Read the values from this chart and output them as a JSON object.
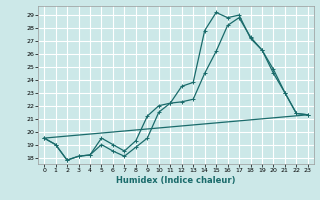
{
  "xlabel": "Humidex (Indice chaleur)",
  "bg_color": "#cce8e8",
  "grid_color": "#ffffff",
  "line_color": "#1a6b6b",
  "xlim": [
    -0.5,
    23.5
  ],
  "ylim": [
    17.5,
    29.7
  ],
  "xticks": [
    0,
    1,
    2,
    3,
    4,
    5,
    6,
    7,
    8,
    9,
    10,
    11,
    12,
    13,
    14,
    15,
    16,
    17,
    18,
    19,
    20,
    21,
    22,
    23
  ],
  "yticks": [
    18,
    19,
    20,
    21,
    22,
    23,
    24,
    25,
    26,
    27,
    28,
    29
  ],
  "line1_x": [
    0,
    1,
    2,
    3,
    4,
    5,
    6,
    7,
    8,
    9,
    10,
    11,
    12,
    13,
    14,
    15,
    16,
    17,
    18,
    19,
    20,
    21,
    22,
    23
  ],
  "line1_y": [
    19.5,
    19.0,
    17.8,
    18.1,
    18.2,
    19.0,
    18.5,
    18.1,
    18.8,
    19.5,
    21.5,
    22.2,
    23.5,
    23.8,
    27.8,
    29.2,
    28.8,
    29.0,
    27.2,
    26.3,
    24.8,
    23.0,
    21.4,
    21.3
  ],
  "line2_x": [
    0,
    1,
    2,
    3,
    4,
    5,
    6,
    7,
    8,
    9,
    10,
    11,
    12,
    13,
    14,
    15,
    16,
    17,
    18,
    19,
    20,
    21,
    22,
    23
  ],
  "line2_y": [
    19.5,
    19.0,
    17.8,
    18.1,
    18.2,
    19.5,
    19.0,
    18.5,
    19.3,
    21.2,
    22.0,
    22.2,
    22.3,
    22.5,
    24.5,
    26.2,
    28.2,
    28.8,
    27.3,
    26.3,
    24.5,
    23.0,
    21.4,
    21.3
  ],
  "line3_x": [
    0,
    23
  ],
  "line3_y": [
    19.5,
    21.3
  ],
  "xlabel_fontsize": 6,
  "tick_fontsize": 4.5,
  "linewidth": 0.9,
  "marker_size": 2.5
}
